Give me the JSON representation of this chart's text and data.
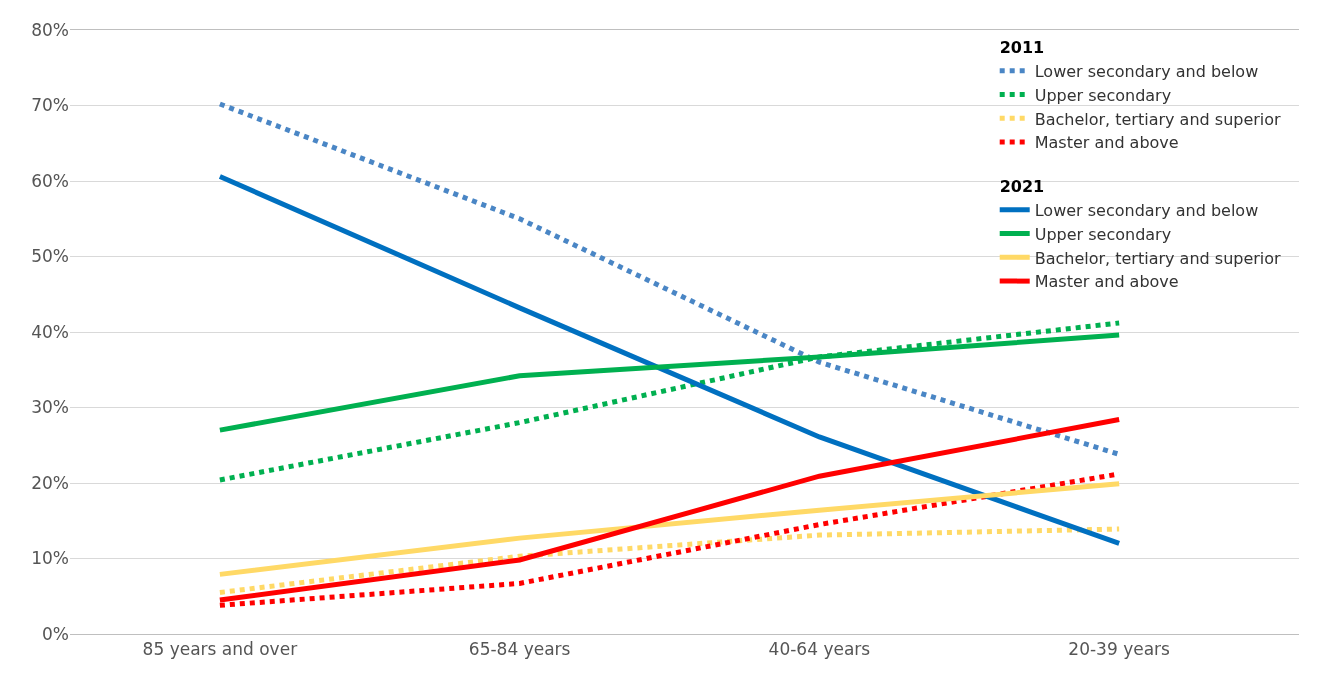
{
  "chart_data": {
    "type": "line",
    "categories": [
      "85 years and over",
      "65-84 years",
      "40-64 years",
      "20-39 years"
    ],
    "annotations": [
      "2011",
      "2021"
    ],
    "series": [
      {
        "name": "Lower secondary and below",
        "color": "#4a86c5",
        "line_style": "dotted",
        "values": [
          70.2,
          55,
          36,
          23.8
        ]
      },
      {
        "name": "Upper secondary",
        "color": "#00b050",
        "line_style": "dotted",
        "values": [
          20.4,
          28,
          36.7,
          41.2
        ]
      },
      {
        "name": "Bachelor, tertiary and superior",
        "color": "#ffd966",
        "line_style": "dotted",
        "values": [
          5.5,
          10.3,
          13.1,
          13.9
        ]
      },
      {
        "name": "Master and above",
        "color": "#ff0000",
        "line_style": "dotted",
        "values": [
          3.8,
          6.7,
          14.5,
          21.2
        ]
      },
      {
        "name": "Lower secondary and below",
        "color": "#0070c0",
        "line_style": "solid",
        "values": [
          60.6,
          43.2,
          26.1,
          12.0
        ]
      },
      {
        "name": "Upper secondary",
        "color": "#00b050",
        "line_style": "solid",
        "values": [
          27,
          34.2,
          36.7,
          39.6
        ]
      },
      {
        "name": "Bachelor, tertiary and superior",
        "color": "#ffd966",
        "line_style": "solid",
        "values": [
          7.9,
          12.7,
          16.4,
          19.9
        ]
      },
      {
        "name": "Master and above",
        "color": "#ff0000",
        "line_style": "solid",
        "values": [
          4.5,
          9.8,
          20.9,
          28.4
        ]
      }
    ],
    "ylim": [
      0,
      80
    ],
    "yticks": [
      {
        "value": 0,
        "label": "0%"
      },
      {
        "value": 10,
        "label": "10%"
      },
      {
        "value": 20,
        "label": "20%"
      },
      {
        "value": 30,
        "label": "30%"
      },
      {
        "value": 40,
        "label": "40%"
      },
      {
        "value": 50,
        "label": "50%"
      },
      {
        "value": 60,
        "label": "60%"
      },
      {
        "value": 70,
        "label": "70%"
      },
      {
        "value": 80,
        "label": "80%"
      }
    ],
    "grid": "y",
    "legend": "top right",
    "marker": "none"
  }
}
